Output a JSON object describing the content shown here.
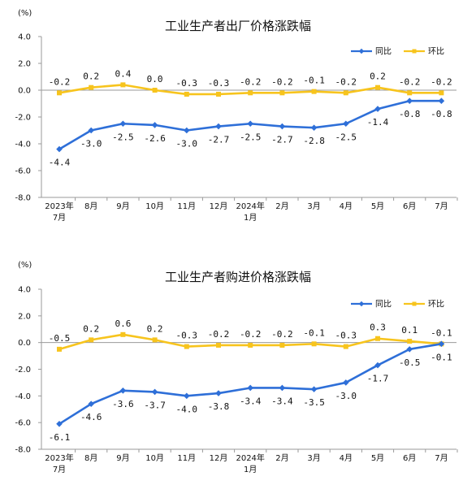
{
  "chart_data": [
    {
      "type": "line",
      "title": "工业生产者出厂价格涨跌幅",
      "unit_label": "(%)",
      "ylim": [
        -8.0,
        4.0
      ],
      "yticks": [
        "4.0",
        "2.0",
        "0.0",
        "-2.0",
        "-4.0",
        "-6.0",
        "-8.0"
      ],
      "categories": [
        [
          "2023年",
          "7月"
        ],
        [
          "8月"
        ],
        [
          "9月"
        ],
        [
          "10月"
        ],
        [
          "11月"
        ],
        [
          "12月"
        ],
        [
          "2024年",
          "1月"
        ],
        [
          "2月"
        ],
        [
          "3月"
        ],
        [
          "4月"
        ],
        [
          "5月"
        ],
        [
          "6月"
        ],
        [
          "7月"
        ]
      ],
      "legend_position": "top-right",
      "grid": false,
      "series": [
        {
          "name": "同比",
          "color": "#2e6fd8",
          "marker": "diamond",
          "values": [
            -4.4,
            -3.0,
            -2.5,
            -2.6,
            -3.0,
            -2.7,
            -2.5,
            -2.7,
            -2.8,
            -2.5,
            -1.4,
            -0.8,
            -0.8
          ],
          "labels": [
            "-4.4",
            "-3.0",
            "-2.5",
            "-2.6",
            "-3.0",
            "-2.7",
            "-2.5",
            "-2.7",
            "-2.8",
            "-2.5",
            "-1.4",
            "-0.8",
            "-0.8"
          ]
        },
        {
          "name": "环比",
          "color": "#f7c41d",
          "marker": "square",
          "values": [
            -0.2,
            0.2,
            0.4,
            0.0,
            -0.3,
            -0.3,
            -0.2,
            -0.2,
            -0.1,
            -0.2,
            0.2,
            -0.2,
            -0.2
          ],
          "labels": [
            "-0.2",
            "0.2",
            "0.4",
            "0.0",
            "-0.3",
            "-0.3",
            "-0.2",
            "-0.2",
            "-0.1",
            "-0.2",
            "0.2",
            "-0.2",
            "-0.2"
          ]
        }
      ]
    },
    {
      "type": "line",
      "title": "工业生产者购进价格涨跌幅",
      "unit_label": "(%)",
      "ylim": [
        -8.0,
        4.0
      ],
      "yticks": [
        "4.0",
        "2.0",
        "0.0",
        "-2.0",
        "-4.0",
        "-6.0",
        "-8.0"
      ],
      "categories": [
        [
          "2023年",
          "7月"
        ],
        [
          "8月"
        ],
        [
          "9月"
        ],
        [
          "10月"
        ],
        [
          "11月"
        ],
        [
          "12月"
        ],
        [
          "2024年",
          "1月"
        ],
        [
          "2月"
        ],
        [
          "3月"
        ],
        [
          "4月"
        ],
        [
          "5月"
        ],
        [
          "6月"
        ],
        [
          "7月"
        ]
      ],
      "legend_position": "top-right",
      "grid": false,
      "series": [
        {
          "name": "同比",
          "color": "#2e6fd8",
          "marker": "diamond",
          "values": [
            -6.1,
            -4.6,
            -3.6,
            -3.7,
            -4.0,
            -3.8,
            -3.4,
            -3.4,
            -3.5,
            -3.0,
            -1.7,
            -0.5,
            -0.1
          ],
          "labels": [
            "-6.1",
            "-4.6",
            "-3.6",
            "-3.7",
            "-4.0",
            "-3.8",
            "-3.4",
            "-3.4",
            "-3.5",
            "-3.0",
            "-1.7",
            "-0.5",
            "-0.1"
          ]
        },
        {
          "name": "环比",
          "color": "#f7c41d",
          "marker": "square",
          "values": [
            -0.5,
            0.2,
            0.6,
            0.2,
            -0.3,
            -0.2,
            -0.2,
            -0.2,
            -0.1,
            -0.3,
            0.3,
            0.1,
            -0.1
          ],
          "labels": [
            "-0.5",
            "0.2",
            "0.6",
            "0.2",
            "-0.3",
            "-0.2",
            "-0.2",
            "-0.2",
            "-0.1",
            "-0.3",
            "0.3",
            "0.1",
            "-0.1"
          ]
        }
      ]
    }
  ]
}
